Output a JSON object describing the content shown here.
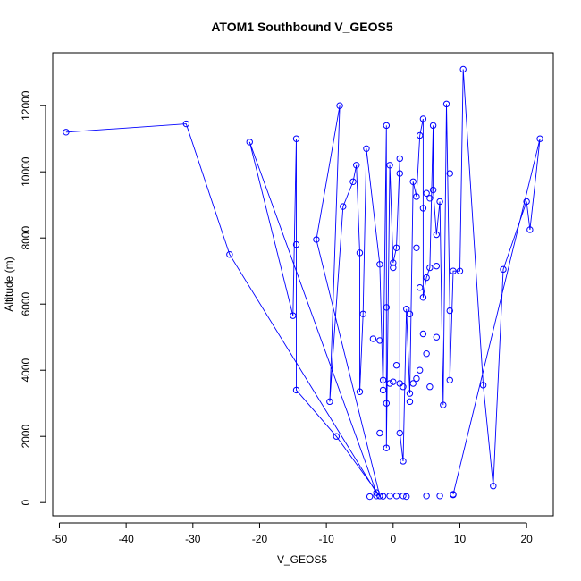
{
  "chart_data": {
    "type": "line",
    "title": "ATOM1 Southbound V_GEOS5",
    "xlabel": "V_GEOS5",
    "ylabel": "Altitude (m)",
    "xlim": [
      -51,
      24
    ],
    "ylim": [
      -400,
      13600
    ],
    "xticks": [
      -50,
      -40,
      -30,
      -20,
      -10,
      0,
      10,
      20
    ],
    "yticks": [
      0,
      2000,
      4000,
      6000,
      8000,
      10000,
      12000
    ],
    "grid": false,
    "legend": "none",
    "marker": "open-circle",
    "color": "#0000ff",
    "series": [
      {
        "values": [
          [
            -49,
            11200
          ],
          [
            -31,
            11450
          ],
          [
            -24.5,
            7500
          ],
          [
            -2.5,
            300
          ],
          [
            -21.5,
            10900
          ],
          [
            -15,
            5650
          ],
          [
            -14.5,
            11000
          ],
          [
            -14.5,
            7800
          ],
          [
            -14.5,
            3400
          ],
          [
            -8.5,
            2000
          ],
          [
            -2,
            200
          ],
          [
            -11.5,
            7950
          ],
          [
            -8,
            12000
          ],
          [
            -9.5,
            3050
          ],
          [
            -7.5,
            8950
          ],
          [
            -6,
            9700
          ],
          [
            -5.5,
            10200
          ],
          [
            -5,
            7550
          ],
          [
            -5,
            3350
          ],
          [
            -4.5,
            5700
          ],
          [
            -4,
            10700
          ],
          [
            -2,
            7200
          ],
          [
            -1.5,
            3400
          ],
          [
            -1,
            11400
          ],
          [
            -1,
            1650
          ],
          [
            -0.5,
            10200
          ],
          [
            0,
            7250
          ],
          [
            0.5,
            7700
          ],
          [
            1,
            10400
          ],
          [
            1,
            2100
          ],
          [
            1.5,
            1250
          ],
          [
            2,
            5850
          ],
          [
            2.5,
            3300
          ],
          [
            3,
            9700
          ],
          [
            3.5,
            9250
          ],
          [
            4,
            11100
          ],
          [
            4.5,
            11600
          ],
          [
            4.5,
            6200
          ],
          [
            5,
            6800
          ],
          [
            5.5,
            7100
          ],
          [
            6,
            11400
          ],
          [
            6,
            9450
          ],
          [
            6.5,
            8100
          ],
          [
            7,
            9100
          ],
          [
            7.5,
            2950
          ],
          [
            8,
            12050
          ],
          [
            8.5,
            5800
          ],
          [
            8.5,
            3700
          ],
          [
            9,
            7000
          ],
          [
            10,
            7000
          ],
          [
            10.5,
            13100
          ],
          [
            13.5,
            3550
          ],
          [
            15,
            500
          ],
          [
            16.5,
            7050
          ],
          [
            20,
            9100
          ],
          [
            20.5,
            8250
          ],
          [
            22,
            11000
          ],
          [
            9,
            250
          ]
        ]
      }
    ],
    "surface_points": [
      [
        -3.5,
        180
      ],
      [
        -2.5,
        200
      ],
      [
        -2,
        200
      ],
      [
        -1.5,
        190
      ],
      [
        -0.5,
        200
      ],
      [
        0.5,
        200
      ],
      [
        1.5,
        200
      ],
      [
        2,
        180
      ],
      [
        5,
        200
      ],
      [
        7,
        200
      ],
      [
        9,
        230
      ]
    ],
    "scatter_points": [
      [
        -3,
        4950
      ],
      [
        -2,
        4900
      ],
      [
        -1.5,
        3700
      ],
      [
        -1,
        3000
      ],
      [
        -0.5,
        3600
      ],
      [
        0,
        3650
      ],
      [
        0.5,
        4150
      ],
      [
        1,
        3600
      ],
      [
        1.5,
        3500
      ],
      [
        2.5,
        3050
      ],
      [
        3,
        3600
      ],
      [
        3.5,
        3750
      ],
      [
        4,
        4000
      ],
      [
        4.5,
        5100
      ],
      [
        5,
        4500
      ],
      [
        5.5,
        3500
      ],
      [
        6.5,
        5000
      ],
      [
        4,
        6500
      ],
      [
        3.5,
        7700
      ],
      [
        4.5,
        8900
      ],
      [
        5,
        9350
      ],
      [
        5.5,
        9200
      ],
      [
        6.5,
        7150
      ],
      [
        8.5,
        9950
      ],
      [
        1,
        9950
      ],
      [
        2.5,
        5700
      ],
      [
        -1,
        5900
      ],
      [
        0,
        7100
      ],
      [
        -2,
        2100
      ]
    ]
  }
}
